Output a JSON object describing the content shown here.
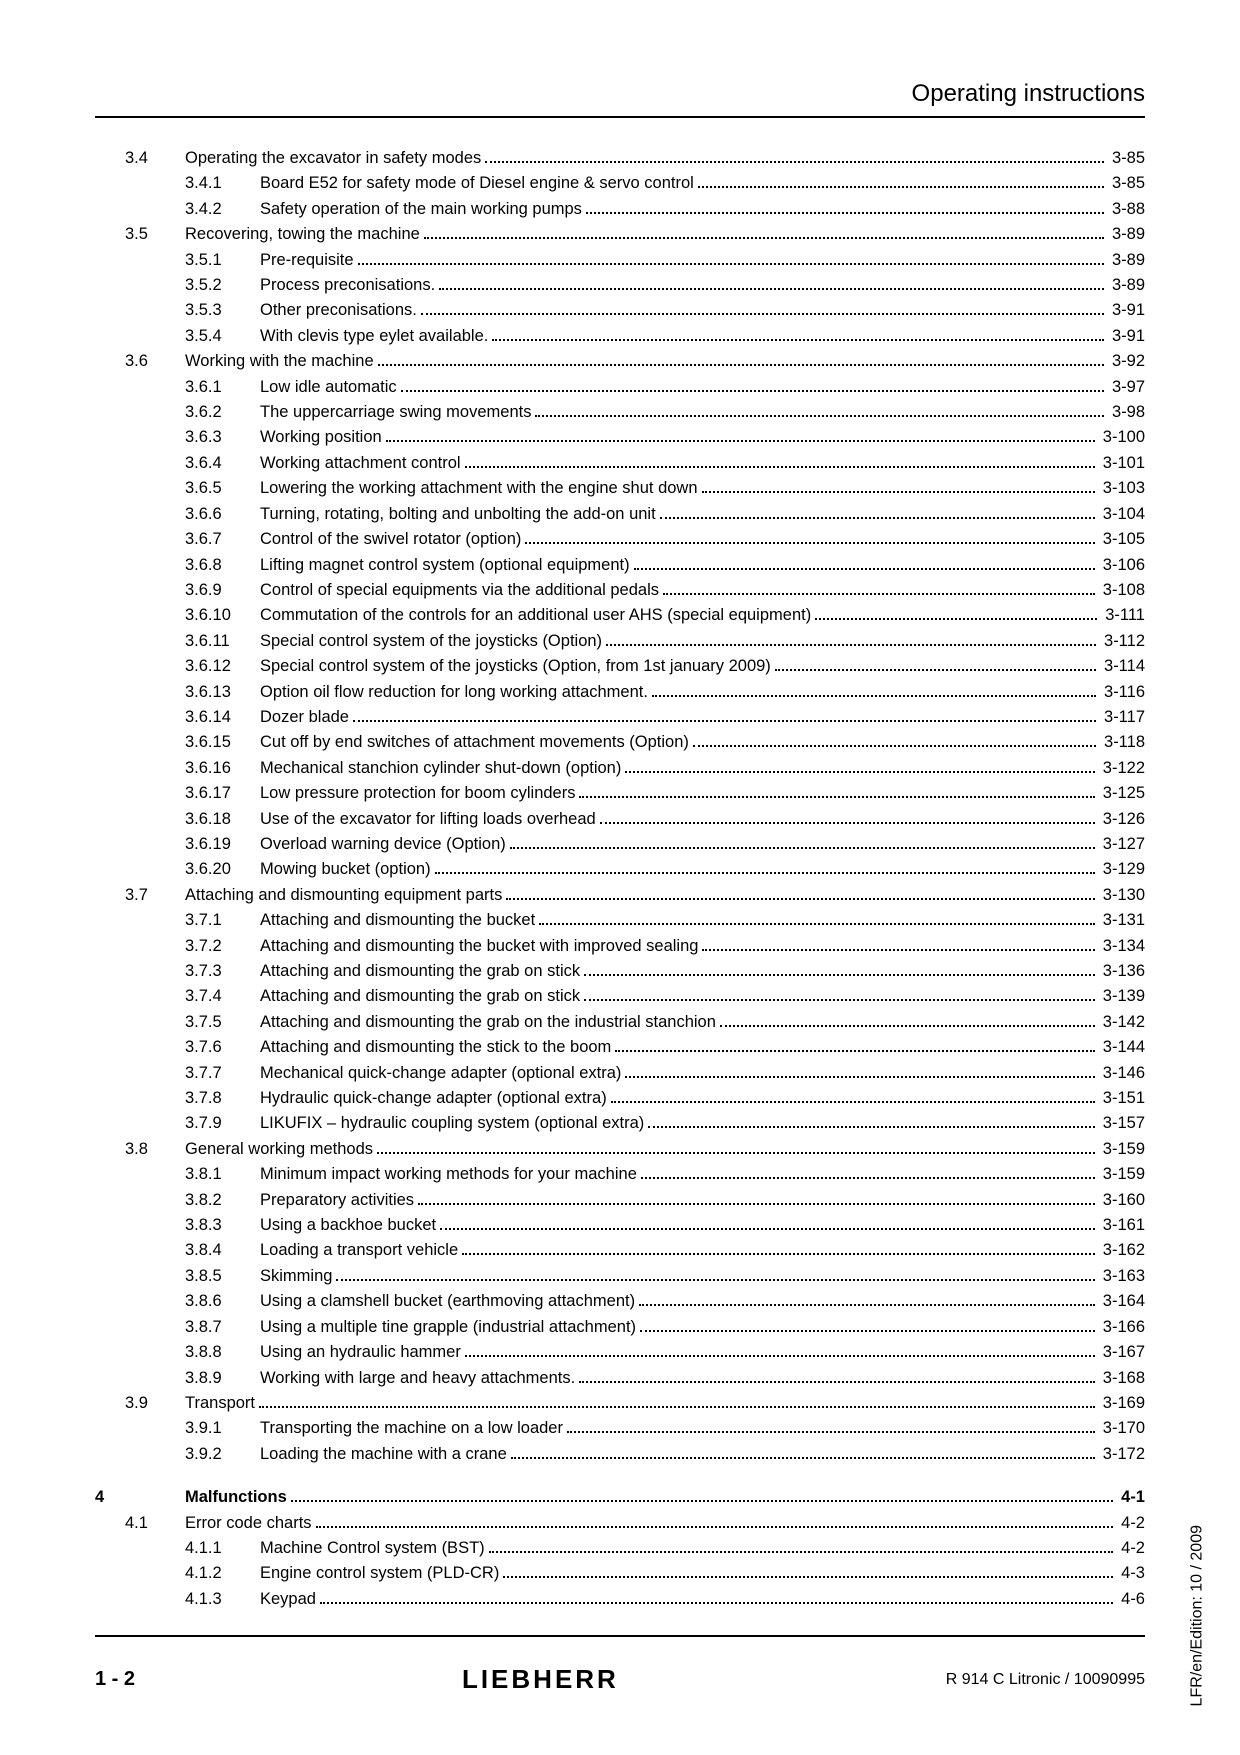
{
  "header": "Operating instructions",
  "side_text": "LFR/en/Edition: 10 / 2009",
  "footer": {
    "left": "1 - 2",
    "center": "LIEBHERR",
    "right": "R 914 C Litronic / 10090995"
  },
  "toc": [
    {
      "level": "sec",
      "num": "3.4",
      "title": "Operating the excavator in safety modes",
      "page": "3-85"
    },
    {
      "level": "sub",
      "num": "3.4.1",
      "title": "Board E52 for safety mode of Diesel engine & servo control",
      "page": "3-85"
    },
    {
      "level": "sub",
      "num": "3.4.2",
      "title": "Safety operation of the main working pumps",
      "page": "3-88"
    },
    {
      "level": "sec",
      "num": "3.5",
      "title": "Recovering, towing the machine",
      "page": "3-89"
    },
    {
      "level": "sub",
      "num": "3.5.1",
      "title": "Pre-requisite",
      "page": "3-89"
    },
    {
      "level": "sub",
      "num": "3.5.2",
      "title": "Process preconisations.",
      "page": "3-89"
    },
    {
      "level": "sub",
      "num": "3.5.3",
      "title": "Other preconisations.",
      "page": "3-91"
    },
    {
      "level": "sub",
      "num": "3.5.4",
      "title": "With clevis type eylet available.",
      "page": "3-91"
    },
    {
      "level": "sec",
      "num": "3.6",
      "title": "Working with the machine",
      "page": "3-92"
    },
    {
      "level": "sub",
      "num": "3.6.1",
      "title": "Low idle automatic",
      "page": "3-97"
    },
    {
      "level": "sub",
      "num": "3.6.2",
      "title": "The uppercarriage swing movements",
      "page": "3-98"
    },
    {
      "level": "sub",
      "num": "3.6.3",
      "title": "Working position",
      "page": "3-100"
    },
    {
      "level": "sub",
      "num": "3.6.4",
      "title": "Working attachment control",
      "page": "3-101"
    },
    {
      "level": "sub",
      "num": "3.6.5",
      "title": "Lowering the working attachment with the engine shut down",
      "page": "3-103"
    },
    {
      "level": "sub",
      "num": "3.6.6",
      "title": "Turning, rotating, bolting and unbolting the add-on unit",
      "page": "3-104"
    },
    {
      "level": "sub",
      "num": "3.6.7",
      "title": "Control of the swivel rotator (option)",
      "page": "3-105"
    },
    {
      "level": "sub",
      "num": "3.6.8",
      "title": "Lifting magnet control system (optional equipment)",
      "page": "3-106"
    },
    {
      "level": "sub",
      "num": "3.6.9",
      "title": "Control of special equipments via the additional pedals",
      "page": "3-108"
    },
    {
      "level": "sub",
      "num": "3.6.10",
      "title": "Commutation of the controls for an additional user AHS (special equipment)",
      "page": "3-111"
    },
    {
      "level": "sub",
      "num": "3.6.11",
      "title": "Special control system of the joysticks (Option)",
      "page": "3-112"
    },
    {
      "level": "sub",
      "num": "3.6.12",
      "title": "Special control system of the joysticks (Option, from 1st january 2009)",
      "page": "3-114"
    },
    {
      "level": "sub",
      "num": "3.6.13",
      "title": "Option oil flow reduction for long working attachment.",
      "page": "3-116"
    },
    {
      "level": "sub",
      "num": "3.6.14",
      "title": "Dozer blade",
      "page": "3-117"
    },
    {
      "level": "sub",
      "num": "3.6.15",
      "title": "Cut off by end switches of attachment movements (Option)",
      "page": "3-118"
    },
    {
      "level": "sub",
      "num": "3.6.16",
      "title": "Mechanical stanchion cylinder shut-down (option)",
      "page": "3-122"
    },
    {
      "level": "sub",
      "num": "3.6.17",
      "title": "Low pressure protection for boom cylinders",
      "page": "3-125"
    },
    {
      "level": "sub",
      "num": "3.6.18",
      "title": "Use of the excavator for lifting loads overhead",
      "page": "3-126"
    },
    {
      "level": "sub",
      "num": "3.6.19",
      "title": "Overload warning device (Option)",
      "page": "3-127"
    },
    {
      "level": "sub",
      "num": "3.6.20",
      "title": "Mowing bucket (option)",
      "page": "3-129"
    },
    {
      "level": "sec",
      "num": "3.7",
      "title": "Attaching and dismounting equipment parts",
      "page": "3-130"
    },
    {
      "level": "sub",
      "num": "3.7.1",
      "title": "Attaching and dismounting the bucket",
      "page": "3-131"
    },
    {
      "level": "sub",
      "num": "3.7.2",
      "title": "Attaching and dismounting the bucket with improved sealing",
      "page": "3-134"
    },
    {
      "level": "sub",
      "num": "3.7.3",
      "title": "Attaching and dismounting the grab on stick",
      "page": "3-136"
    },
    {
      "level": "sub",
      "num": "3.7.4",
      "title": "Attaching and dismounting the grab on stick",
      "page": "3-139"
    },
    {
      "level": "sub",
      "num": "3.7.5",
      "title": "Attaching and dismounting the grab on the industrial stanchion",
      "page": "3-142"
    },
    {
      "level": "sub",
      "num": "3.7.6",
      "title": "Attaching and dismounting the stick to the boom",
      "page": "3-144"
    },
    {
      "level": "sub",
      "num": "3.7.7",
      "title": "Mechanical quick-change adapter (optional extra)",
      "page": "3-146"
    },
    {
      "level": "sub",
      "num": "3.7.8",
      "title": "Hydraulic quick-change adapter (optional extra)",
      "page": "3-151"
    },
    {
      "level": "sub",
      "num": "3.7.9",
      "title": "LIKUFIX – hydraulic coupling system (optional extra)",
      "page": "3-157"
    },
    {
      "level": "sec",
      "num": "3.8",
      "title": "General working methods",
      "page": "3-159"
    },
    {
      "level": "sub",
      "num": "3.8.1",
      "title": "Minimum impact working methods for your machine",
      "page": "3-159"
    },
    {
      "level": "sub",
      "num": "3.8.2",
      "title": "Preparatory activities",
      "page": "3-160"
    },
    {
      "level": "sub",
      "num": "3.8.3",
      "title": "Using a backhoe bucket",
      "page": "3-161"
    },
    {
      "level": "sub",
      "num": "3.8.4",
      "title": "Loading a transport vehicle",
      "page": "3-162"
    },
    {
      "level": "sub",
      "num": "3.8.5",
      "title": "Skimming",
      "page": "3-163"
    },
    {
      "level": "sub",
      "num": "3.8.6",
      "title": "Using a clamshell bucket (earthmoving attachment)",
      "page": "3-164"
    },
    {
      "level": "sub",
      "num": "3.8.7",
      "title": "Using a multiple tine grapple (industrial attachment)",
      "page": "3-166"
    },
    {
      "level": "sub",
      "num": "3.8.8",
      "title": "Using an hydraulic hammer",
      "page": "3-167"
    },
    {
      "level": "sub",
      "num": "3.8.9",
      "title": "Working with large and heavy attachments.",
      "page": "3-168"
    },
    {
      "level": "sec",
      "num": "3.9",
      "title": "Transport",
      "page": "3-169"
    },
    {
      "level": "sub",
      "num": "3.9.1",
      "title": "Transporting the machine on a low loader",
      "page": "3-170"
    },
    {
      "level": "sub",
      "num": "3.9.2",
      "title": "Loading the machine with a crane",
      "page": "3-172"
    },
    {
      "level": "gap"
    },
    {
      "level": "chap",
      "num": "4",
      "title": "Malfunctions",
      "page": "4-1",
      "bold": true
    },
    {
      "level": "sec",
      "num": "4.1",
      "title": "Error code charts",
      "page": "4-2"
    },
    {
      "level": "sub",
      "num": "4.1.1",
      "title": "Machine Control system (BST)",
      "page": "4-2"
    },
    {
      "level": "sub",
      "num": "4.1.2",
      "title": "Engine control system (PLD-CR)",
      "page": "4-3"
    },
    {
      "level": "sub",
      "num": "4.1.3",
      "title": "Keypad",
      "page": "4-6"
    }
  ]
}
